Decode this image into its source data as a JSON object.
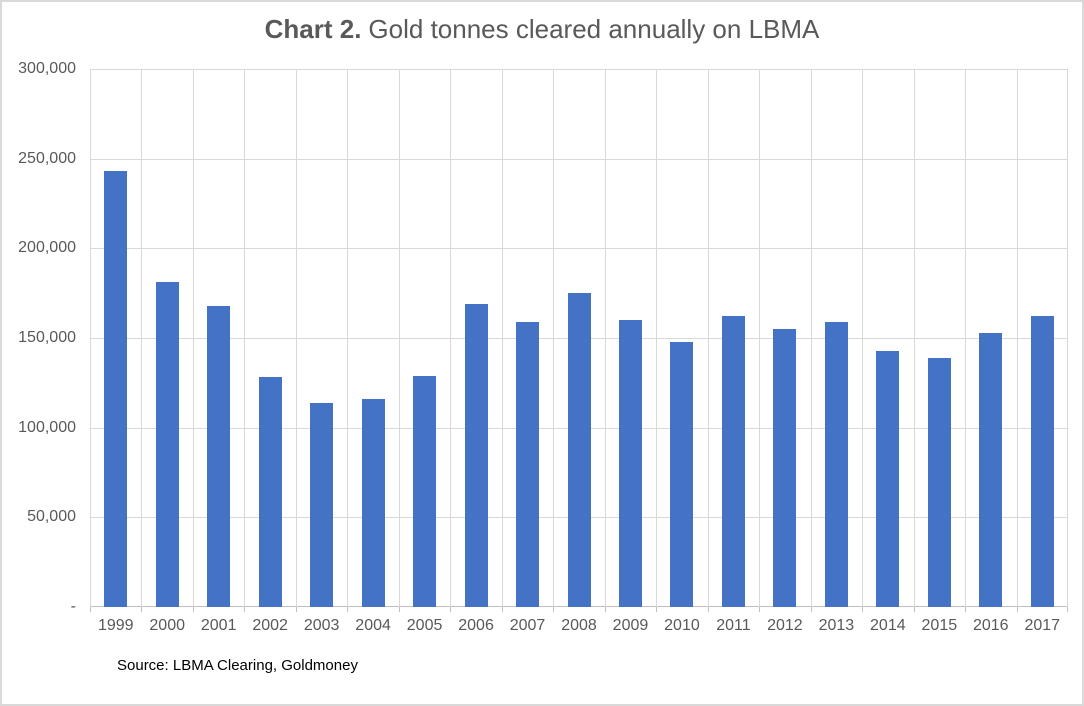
{
  "title": {
    "bold_part": "Chart 2.",
    "text_part": "Gold tonnes cleared annually on LBMA"
  },
  "source": "Source: LBMA Clearing, Goldmoney",
  "colors": {
    "bar": "#4472C4",
    "gridline": "#D9D9D9",
    "axis_line": "#BFBFBF",
    "axis_text": "#595959",
    "title_text": "#595959",
    "source_text": "#000000"
  },
  "chart_data": {
    "type": "bar",
    "title": "Chart 2. Gold tonnes cleared annually on LBMA",
    "categories": [
      "1999",
      "2000",
      "2001",
      "2002",
      "2003",
      "2004",
      "2005",
      "2006",
      "2007",
      "2008",
      "2009",
      "2010",
      "2011",
      "2012",
      "2013",
      "2014",
      "2015",
      "2016",
      "2017"
    ],
    "values": [
      243000,
      181000,
      168000,
      128000,
      114000,
      116000,
      129000,
      169000,
      159000,
      175000,
      160000,
      148000,
      162000,
      155000,
      159000,
      143000,
      139000,
      153000,
      162000
    ],
    "xlabel": "",
    "ylabel": "",
    "ylim": [
      0,
      300000
    ],
    "ytick_interval": 50000,
    "ytick_labels_top_to_bottom": [
      "300,000",
      "250,000",
      "200,000",
      "150,000",
      "100,000",
      "50,000",
      "-"
    ],
    "grid": true,
    "legend": false,
    "source": "Source: LBMA Clearing, Goldmoney"
  }
}
